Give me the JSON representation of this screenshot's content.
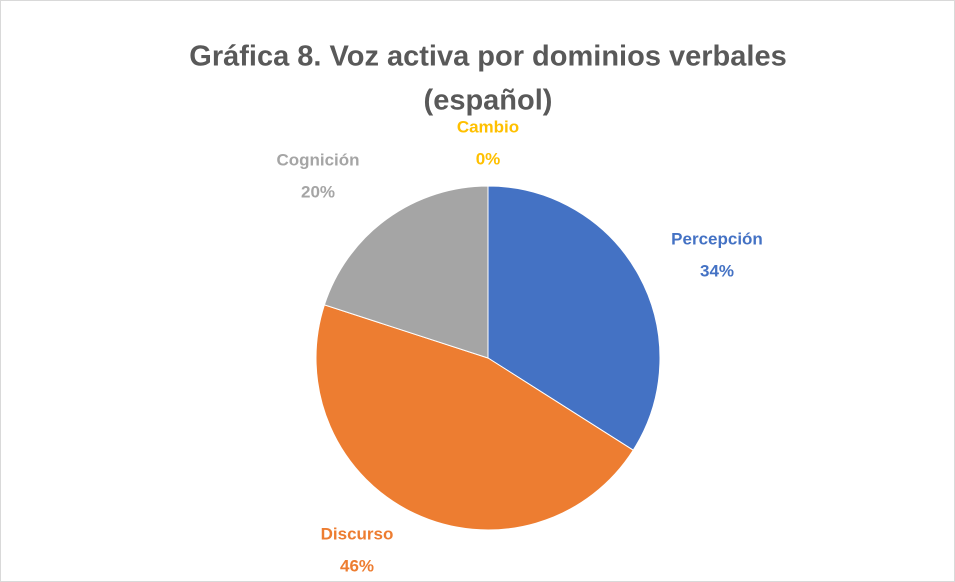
{
  "chart_data": {
    "type": "pie",
    "title": [
      "Gráfica 8. Voz activa por dominios verbales",
      "(español)"
    ],
    "categories": [
      "Percepción",
      "Discurso",
      "Cognición",
      "Cambio"
    ],
    "values": [
      34,
      46,
      20,
      0
    ],
    "value_labels": [
      "34%",
      "46%",
      "20%",
      "0%"
    ],
    "colors": [
      "#4472c4",
      "#ed7d31",
      "#a5a5a5",
      "#ffc000"
    ]
  }
}
